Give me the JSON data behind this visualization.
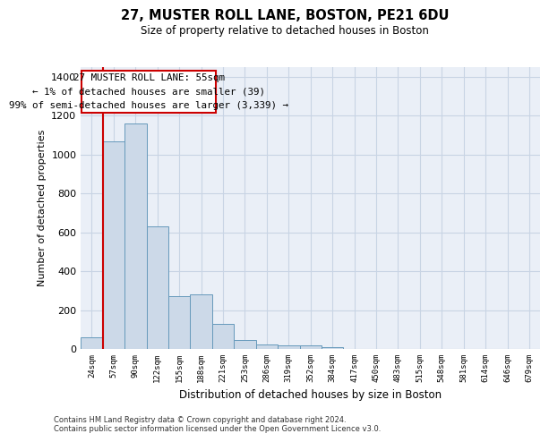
{
  "title": "27, MUSTER ROLL LANE, BOSTON, PE21 6DU",
  "subtitle": "Size of property relative to detached houses in Boston",
  "xlabel": "Distribution of detached houses by size in Boston",
  "ylabel": "Number of detached properties",
  "bin_labels": [
    "24sqm",
    "57sqm",
    "90sqm",
    "122sqm",
    "155sqm",
    "188sqm",
    "221sqm",
    "253sqm",
    "286sqm",
    "319sqm",
    "352sqm",
    "384sqm",
    "417sqm",
    "450sqm",
    "483sqm",
    "515sqm",
    "548sqm",
    "581sqm",
    "614sqm",
    "646sqm",
    "679sqm"
  ],
  "bar_heights": [
    62,
    1070,
    1160,
    630,
    270,
    280,
    130,
    45,
    22,
    20,
    20,
    10,
    0,
    0,
    0,
    0,
    0,
    0,
    0,
    0,
    0
  ],
  "bar_color": "#ccd9e8",
  "bar_edgecolor": "#6699bb",
  "vline_color": "#cc0000",
  "annotation_text": "27 MUSTER ROLL LANE: 55sqm\n← 1% of detached houses are smaller (39)\n99% of semi-detached houses are larger (3,339) →",
  "annotation_box_color": "#cc0000",
  "ylim": [
    0,
    1450
  ],
  "yticks": [
    0,
    200,
    400,
    600,
    800,
    1000,
    1200,
    1400
  ],
  "grid_color": "#c8d4e4",
  "background_color": "#eaeff7",
  "footer_line1": "Contains HM Land Registry data © Crown copyright and database right 2024.",
  "footer_line2": "Contains public sector information licensed under the Open Government Licence v3.0."
}
